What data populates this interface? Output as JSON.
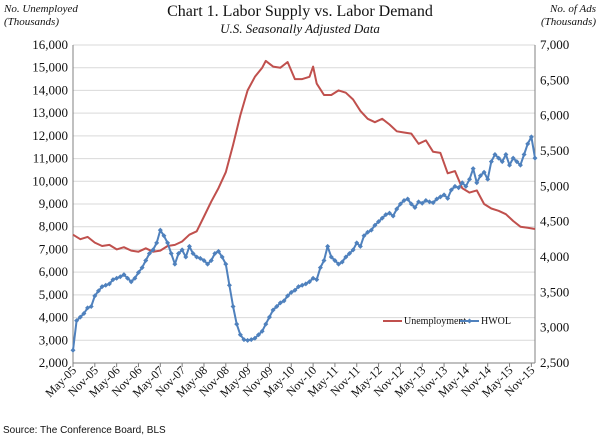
{
  "chart_data": {
    "type": "line",
    "title": "Chart 1. Labor Supply vs. Labor Demand",
    "subtitle": "U.S. Seasonally Adjusted Data",
    "ylabel_left": [
      "No. Unemployed",
      "(Thousands)"
    ],
    "ylabel_right": [
      "No. of Ads",
      "(Thousands)"
    ],
    "ylim_left": [
      2000,
      16000
    ],
    "ylim_right": [
      2500,
      7000
    ],
    "yticks_left": [
      2000,
      3000,
      4000,
      5000,
      6000,
      7000,
      8000,
      9000,
      10000,
      11000,
      12000,
      13000,
      14000,
      15000,
      16000
    ],
    "yticks_right": [
      2500,
      3000,
      3500,
      4000,
      4500,
      5000,
      5500,
      6000,
      6500,
      7000
    ],
    "ytick_labels_left": [
      "2,000",
      "3,000",
      "4,000",
      "5,000",
      "6,000",
      "7,000",
      "8,000",
      "9,000",
      "10,000",
      "11,000",
      "12,000",
      "13,000",
      "14,000",
      "15,000",
      "16,000"
    ],
    "ytick_labels_right": [
      "2,500",
      "3,000",
      "3,500",
      "4,000",
      "4,500",
      "5,000",
      "5,500",
      "6,000",
      "6,500",
      "7,000"
    ],
    "xtick_labels": [
      "May-05",
      "Nov-05",
      "May-06",
      "Nov-06",
      "May-07",
      "Nov-07",
      "May-08",
      "Nov-08",
      "May-09",
      "Nov-09",
      "May-10",
      "Nov-10",
      "May-11",
      "Nov-11",
      "May-12",
      "Nov-12",
      "May-13",
      "Nov-13",
      "May-14",
      "Nov-14",
      "May-15",
      "Nov-15"
    ],
    "x_start": "2005-05",
    "x_end": "2015-12",
    "grid": "horizontal",
    "legend_position": "lower-right",
    "source": "Source: The Conference Board, BLS",
    "series": [
      {
        "name": "Unemployment",
        "axis": "left",
        "color": "#C0504D",
        "marker": "none",
        "points": [
          [
            "2005-05",
            7650
          ],
          [
            "2005-07",
            7450
          ],
          [
            "2005-09",
            7550
          ],
          [
            "2005-11",
            7300
          ],
          [
            "2006-01",
            7150
          ],
          [
            "2006-03",
            7200
          ],
          [
            "2006-05",
            7000
          ],
          [
            "2006-07",
            7100
          ],
          [
            "2006-09",
            6950
          ],
          [
            "2006-11",
            6900
          ],
          [
            "2007-01",
            7050
          ],
          [
            "2007-03",
            6900
          ],
          [
            "2007-05",
            6950
          ],
          [
            "2007-07",
            7150
          ],
          [
            "2007-09",
            7200
          ],
          [
            "2007-11",
            7350
          ],
          [
            "2008-01",
            7650
          ],
          [
            "2008-03",
            7800
          ],
          [
            "2008-05",
            8450
          ],
          [
            "2008-07",
            9100
          ],
          [
            "2008-09",
            9700
          ],
          [
            "2008-11",
            10400
          ],
          [
            "2009-01",
            11600
          ],
          [
            "2009-03",
            12900
          ],
          [
            "2009-05",
            14000
          ],
          [
            "2009-07",
            14600
          ],
          [
            "2009-09",
            15000
          ],
          [
            "2009-10",
            15300
          ],
          [
            "2009-12",
            15050
          ],
          [
            "2010-02",
            15000
          ],
          [
            "2010-04",
            15250
          ],
          [
            "2010-06",
            14500
          ],
          [
            "2010-08",
            14500
          ],
          [
            "2010-10",
            14600
          ],
          [
            "2010-11",
            15050
          ],
          [
            "2010-12",
            14300
          ],
          [
            "2011-02",
            13800
          ],
          [
            "2011-04",
            13800
          ],
          [
            "2011-06",
            14000
          ],
          [
            "2011-08",
            13900
          ],
          [
            "2011-10",
            13600
          ],
          [
            "2011-12",
            13100
          ],
          [
            "2012-02",
            12750
          ],
          [
            "2012-04",
            12600
          ],
          [
            "2012-06",
            12750
          ],
          [
            "2012-08",
            12500
          ],
          [
            "2012-10",
            12200
          ],
          [
            "2012-12",
            12150
          ],
          [
            "2013-02",
            12100
          ],
          [
            "2013-04",
            11650
          ],
          [
            "2013-06",
            11800
          ],
          [
            "2013-08",
            11300
          ],
          [
            "2013-10",
            11250
          ],
          [
            "2013-12",
            10350
          ],
          [
            "2014-02",
            10450
          ],
          [
            "2014-04",
            9700
          ],
          [
            "2014-06",
            9500
          ],
          [
            "2014-08",
            9600
          ],
          [
            "2014-10",
            9000
          ],
          [
            "2014-12",
            8800
          ],
          [
            "2015-02",
            8700
          ],
          [
            "2015-04",
            8550
          ],
          [
            "2015-06",
            8250
          ],
          [
            "2015-08",
            8000
          ],
          [
            "2015-10",
            7950
          ],
          [
            "2015-12",
            7900
          ]
        ]
      },
      {
        "name": "HWOL",
        "axis": "right",
        "color": "#4F81BD",
        "marker": "diamond",
        "points": [
          [
            "2005-05",
            2680
          ],
          [
            "2005-06",
            3100
          ],
          [
            "2005-07",
            3150
          ],
          [
            "2005-08",
            3200
          ],
          [
            "2005-09",
            3280
          ],
          [
            "2005-10",
            3300
          ],
          [
            "2005-11",
            3450
          ],
          [
            "2005-12",
            3520
          ],
          [
            "2006-01",
            3580
          ],
          [
            "2006-02",
            3600
          ],
          [
            "2006-03",
            3620
          ],
          [
            "2006-04",
            3680
          ],
          [
            "2006-05",
            3700
          ],
          [
            "2006-06",
            3720
          ],
          [
            "2006-07",
            3750
          ],
          [
            "2006-08",
            3700
          ],
          [
            "2006-09",
            3650
          ],
          [
            "2006-10",
            3700
          ],
          [
            "2006-11",
            3780
          ],
          [
            "2006-12",
            3850
          ],
          [
            "2007-01",
            3950
          ],
          [
            "2007-02",
            4050
          ],
          [
            "2007-03",
            4100
          ],
          [
            "2007-04",
            4200
          ],
          [
            "2007-05",
            4380
          ],
          [
            "2007-06",
            4300
          ],
          [
            "2007-07",
            4200
          ],
          [
            "2007-08",
            4050
          ],
          [
            "2007-09",
            3900
          ],
          [
            "2007-10",
            4050
          ],
          [
            "2007-11",
            4100
          ],
          [
            "2007-12",
            4000
          ],
          [
            "2008-01",
            4150
          ],
          [
            "2008-02",
            4050
          ],
          [
            "2008-03",
            4000
          ],
          [
            "2008-04",
            3980
          ],
          [
            "2008-05",
            3950
          ],
          [
            "2008-06",
            3900
          ],
          [
            "2008-07",
            3950
          ],
          [
            "2008-08",
            4050
          ],
          [
            "2008-09",
            4080
          ],
          [
            "2008-10",
            4000
          ],
          [
            "2008-11",
            3900
          ],
          [
            "2008-12",
            3600
          ],
          [
            "2009-01",
            3300
          ],
          [
            "2009-02",
            3050
          ],
          [
            "2009-03",
            2900
          ],
          [
            "2009-04",
            2830
          ],
          [
            "2009-05",
            2820
          ],
          [
            "2009-06",
            2830
          ],
          [
            "2009-07",
            2850
          ],
          [
            "2009-08",
            2900
          ],
          [
            "2009-09",
            2950
          ],
          [
            "2009-10",
            3050
          ],
          [
            "2009-11",
            3150
          ],
          [
            "2009-12",
            3250
          ],
          [
            "2010-01",
            3300
          ],
          [
            "2010-02",
            3350
          ],
          [
            "2010-03",
            3380
          ],
          [
            "2010-04",
            3450
          ],
          [
            "2010-05",
            3500
          ],
          [
            "2010-06",
            3530
          ],
          [
            "2010-07",
            3580
          ],
          [
            "2010-08",
            3600
          ],
          [
            "2010-09",
            3620
          ],
          [
            "2010-10",
            3650
          ],
          [
            "2010-11",
            3700
          ],
          [
            "2010-12",
            3680
          ],
          [
            "2011-01",
            3850
          ],
          [
            "2011-02",
            3950
          ],
          [
            "2011-03",
            4150
          ],
          [
            "2011-04",
            4000
          ],
          [
            "2011-05",
            3950
          ],
          [
            "2011-06",
            3900
          ],
          [
            "2011-07",
            3930
          ],
          [
            "2011-08",
            4000
          ],
          [
            "2011-09",
            4050
          ],
          [
            "2011-10",
            4100
          ],
          [
            "2011-11",
            4200
          ],
          [
            "2011-12",
            4150
          ],
          [
            "2012-01",
            4300
          ],
          [
            "2012-02",
            4350
          ],
          [
            "2012-03",
            4380
          ],
          [
            "2012-04",
            4450
          ],
          [
            "2012-05",
            4500
          ],
          [
            "2012-06",
            4550
          ],
          [
            "2012-07",
            4600
          ],
          [
            "2012-08",
            4620
          ],
          [
            "2012-09",
            4580
          ],
          [
            "2012-10",
            4680
          ],
          [
            "2012-11",
            4750
          ],
          [
            "2012-12",
            4800
          ],
          [
            "2013-01",
            4820
          ],
          [
            "2013-02",
            4750
          ],
          [
            "2013-03",
            4700
          ],
          [
            "2013-04",
            4780
          ],
          [
            "2013-05",
            4760
          ],
          [
            "2013-06",
            4800
          ],
          [
            "2013-07",
            4780
          ],
          [
            "2013-08",
            4770
          ],
          [
            "2013-09",
            4820
          ],
          [
            "2013-10",
            4850
          ],
          [
            "2013-11",
            4880
          ],
          [
            "2013-12",
            4830
          ],
          [
            "2014-01",
            4950
          ],
          [
            "2014-02",
            5000
          ],
          [
            "2014-03",
            4980
          ],
          [
            "2014-04",
            5050
          ],
          [
            "2014-05",
            5000
          ],
          [
            "2014-06",
            5100
          ],
          [
            "2014-07",
            5250
          ],
          [
            "2014-08",
            5050
          ],
          [
            "2014-09",
            5150
          ],
          [
            "2014-10",
            5200
          ],
          [
            "2014-11",
            5100
          ],
          [
            "2014-12",
            5350
          ],
          [
            "2015-01",
            5450
          ],
          [
            "2015-02",
            5400
          ],
          [
            "2015-03",
            5350
          ],
          [
            "2015-04",
            5450
          ],
          [
            "2015-05",
            5300
          ],
          [
            "2015-06",
            5400
          ],
          [
            "2015-07",
            5350
          ],
          [
            "2015-08",
            5300
          ],
          [
            "2015-09",
            5450
          ],
          [
            "2015-10",
            5600
          ],
          [
            "2015-11",
            5700
          ],
          [
            "2015-12",
            5400
          ]
        ]
      }
    ]
  }
}
